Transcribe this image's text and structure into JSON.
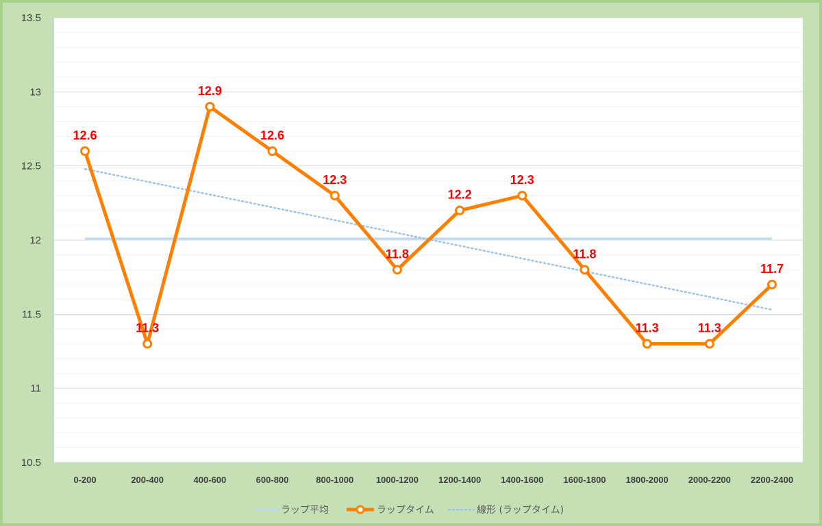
{
  "chart_data": {
    "type": "line",
    "categories": [
      "0-200",
      "200-400",
      "400-600",
      "600-800",
      "800-1000",
      "1000-1200",
      "1200-1400",
      "1400-1600",
      "1600-1800",
      "1800-2000",
      "2000-2200",
      "2200-2400"
    ],
    "series": [
      {
        "name": "ラップ平均",
        "values": [
          12.01,
          12.01,
          12.01,
          12.01,
          12.01,
          12.01,
          12.01,
          12.01,
          12.01,
          12.01,
          12.01,
          12.01
        ],
        "color": "#bdd7ee"
      },
      {
        "name": "ラップタイム",
        "values": [
          12.6,
          11.3,
          12.9,
          12.6,
          12.3,
          11.8,
          12.2,
          12.3,
          11.8,
          11.3,
          11.3,
          11.7
        ],
        "color": "#ff8000",
        "data_labels": [
          "12.6",
          "11.3",
          "12.9",
          "12.6",
          "12.3",
          "11.8",
          "12.2",
          "12.3",
          "11.8",
          "11.3",
          "11.3",
          "11.7"
        ]
      },
      {
        "name": "線形 (ラップタイム)",
        "values": [
          12.48,
          12.39,
          12.31,
          12.22,
          12.13,
          12.05,
          11.96,
          11.88,
          11.79,
          11.71,
          11.62,
          11.53
        ],
        "color": "#9dc3e6",
        "style": "dotted"
      }
    ],
    "yticks": [
      "10.5",
      "11",
      "11.5",
      "12",
      "12.5",
      "13",
      "13.5"
    ],
    "ylim": [
      10.5,
      13.5
    ],
    "ytick_values": [
      10.5,
      11,
      11.5,
      12,
      12.5,
      13,
      13.5
    ],
    "grid": true,
    "minor_grid": true,
    "data_label_color": "#ff0000",
    "legend_position": "bottom"
  }
}
